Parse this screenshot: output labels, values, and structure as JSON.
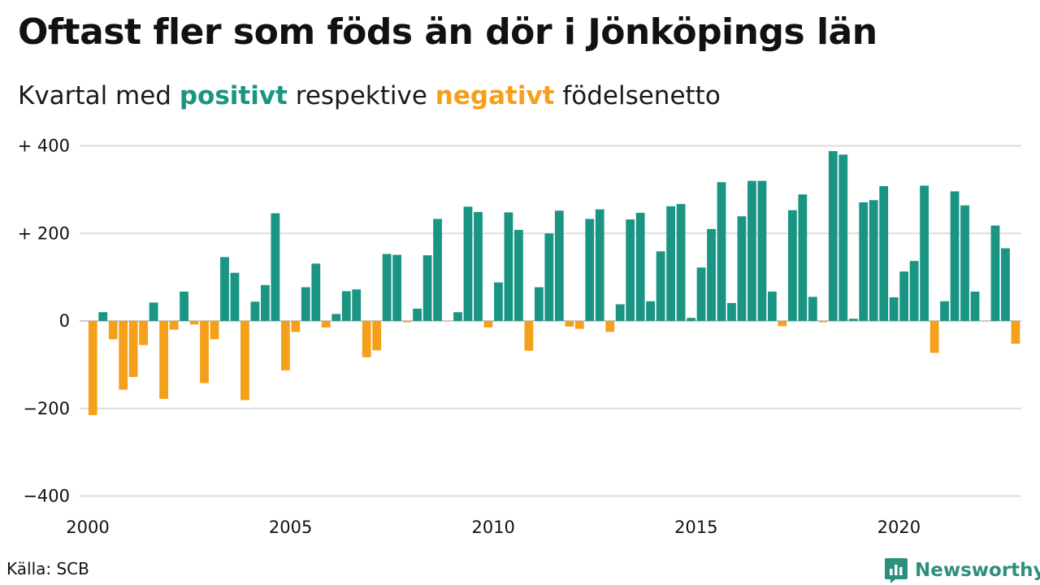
{
  "title": "Oftast fler som föds än dör i Jönköpings län",
  "subtitle": {
    "prefix": "Kvartal med",
    "positive_word": "positivt",
    "middle": "respektive",
    "negative_word": "negativt",
    "suffix": "födelsenetto"
  },
  "source": "Källa: SCB",
  "brand": {
    "name": "Newsworthy",
    "icon": "newsworthy-logo-icon"
  },
  "colors": {
    "positive": "#1a9583",
    "negative": "#f5a01a",
    "grid": "#dddddd",
    "baseline": "#cccccc"
  },
  "chart_data": {
    "type": "bar",
    "unit": "quarter",
    "start": "2000 Q1",
    "ylim": [
      -400,
      400
    ],
    "yticks": [
      {
        "value": 400,
        "label": "+ 400"
      },
      {
        "value": 200,
        "label": "+ 200"
      },
      {
        "value": 0,
        "label": "0"
      },
      {
        "value": -200,
        "label": "−200"
      },
      {
        "value": -400,
        "label": "−400"
      }
    ],
    "xticks": [
      {
        "year": 2000,
        "label": "2000"
      },
      {
        "year": 2005,
        "label": "2005"
      },
      {
        "year": 2010,
        "label": "2010"
      },
      {
        "year": 2015,
        "label": "2015"
      },
      {
        "year": 2020,
        "label": "2020"
      }
    ],
    "grid": true,
    "legend": "none",
    "values": [
      -215,
      20,
      -42,
      -157,
      -128,
      -55,
      42,
      -178,
      -20,
      67,
      -8,
      -142,
      -42,
      146,
      110,
      -181,
      44,
      82,
      246,
      -113,
      -25,
      77,
      131,
      -15,
      16,
      68,
      72,
      -83,
      -67,
      153,
      151,
      -3,
      28,
      150,
      233,
      0,
      20,
      261,
      249,
      -15,
      88,
      248,
      208,
      -68,
      77,
      200,
      252,
      -13,
      -18,
      233,
      255,
      -25,
      38,
      232,
      247,
      45,
      159,
      262,
      267,
      7,
      122,
      210,
      317,
      41,
      239,
      320,
      320,
      67,
      -12,
      253,
      289,
      55,
      -3,
      388,
      380,
      5,
      271,
      276,
      308,
      54,
      113,
      137,
      309,
      -73,
      45,
      296,
      264,
      67,
      0,
      218,
      166,
      -52
    ]
  }
}
